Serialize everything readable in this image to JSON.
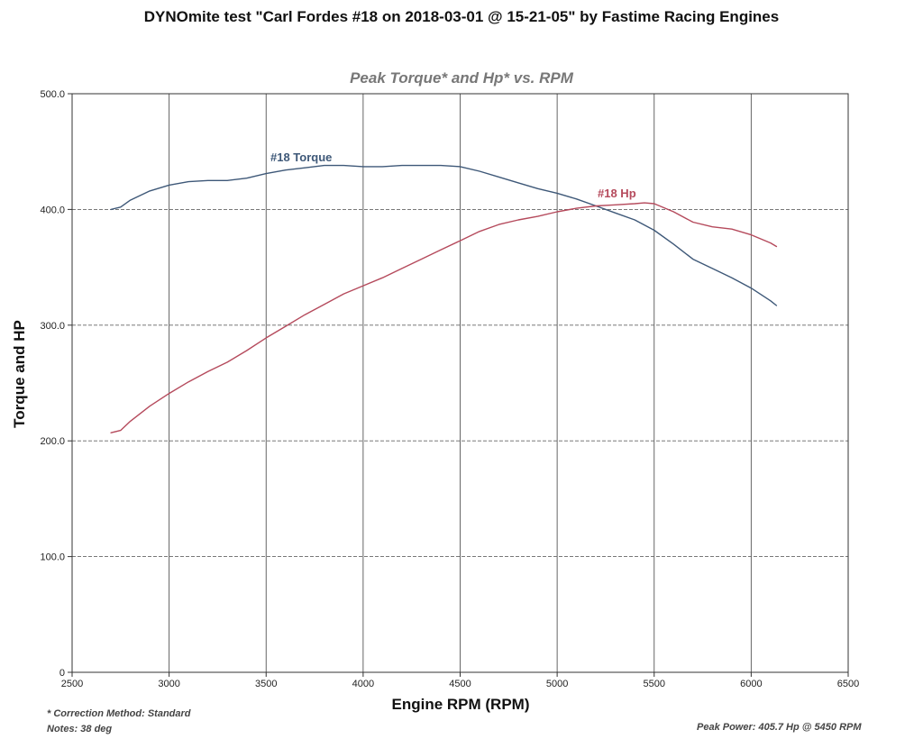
{
  "title": "DYNOmite test \"Carl Fordes #18 on 2018-03-01 @ 15-21-05\" by Fastime Racing Engines",
  "chart_data": {
    "type": "line",
    "title": "Peak Torque* and Hp* vs. RPM",
    "xlabel": "Engine RPM (RPM)",
    "ylabel": "Torque and HP",
    "xlim": [
      2500,
      6500
    ],
    "ylim": [
      0,
      500
    ],
    "x_ticks": [
      "2500",
      "3000",
      "3500",
      "4000",
      "4500",
      "5000",
      "5500",
      "6000",
      "6500"
    ],
    "y_ticks": [
      "0",
      "100.0",
      "200.0",
      "300.0",
      "400.0",
      "500.0"
    ],
    "grid": true,
    "colors": {
      "torque": "#3e5878",
      "hp": "#b54a5c"
    },
    "series": [
      {
        "name": "#18 Torque",
        "key": "torque",
        "x": [
          2700,
          2750,
          2800,
          2900,
          3000,
          3100,
          3200,
          3300,
          3400,
          3500,
          3600,
          3700,
          3800,
          3900,
          4000,
          4100,
          4200,
          4300,
          4400,
          4500,
          4600,
          4700,
          4800,
          4900,
          5000,
          5100,
          5200,
          5300,
          5400,
          5500,
          5600,
          5700,
          5800,
          5900,
          6000,
          6100,
          6130
        ],
        "values": [
          400,
          402,
          408,
          416,
          421,
          424,
          425,
          425,
          427,
          431,
          434,
          436,
          438,
          438,
          437,
          437,
          438,
          438,
          438,
          437,
          433,
          428,
          423,
          418,
          414,
          409,
          403,
          397,
          391,
          382,
          370,
          357,
          349,
          341,
          332,
          321,
          317
        ]
      },
      {
        "name": "#18 Hp",
        "key": "hp",
        "x": [
          2700,
          2750,
          2800,
          2900,
          3000,
          3100,
          3200,
          3300,
          3400,
          3500,
          3600,
          3700,
          3800,
          3900,
          4000,
          4100,
          4200,
          4300,
          4400,
          4500,
          4600,
          4700,
          4800,
          4900,
          5000,
          5100,
          5200,
          5300,
          5400,
          5450,
          5500,
          5600,
          5700,
          5800,
          5900,
          6000,
          6100,
          6130
        ],
        "values": [
          207,
          209,
          217,
          230,
          241,
          251,
          260,
          268,
          278,
          289,
          299,
          309,
          318,
          327,
          334,
          341,
          349,
          357,
          365,
          373,
          381,
          387,
          391,
          394,
          398,
          401,
          403,
          404,
          405,
          405.7,
          405,
          398,
          389,
          385,
          383,
          378,
          371,
          368
        ]
      }
    ]
  },
  "footer": {
    "correction": "* Correction Method: Standard",
    "notes": "Notes: 38 deg",
    "peak": "Peak Power: 405.7 Hp @ 5450 RPM"
  }
}
